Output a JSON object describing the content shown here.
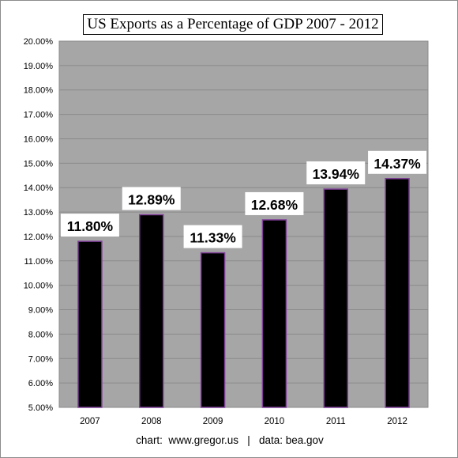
{
  "chart_data": {
    "type": "bar",
    "title": "US Exports as a Percentage of GDP 2007 - 2012",
    "categories": [
      "2007",
      "2008",
      "2009",
      "2010",
      "2011",
      "2012"
    ],
    "values": [
      11.8,
      12.89,
      11.33,
      12.68,
      13.94,
      14.37
    ],
    "data_labels": [
      "11.80%",
      "12.89%",
      "11.33%",
      "12.68%",
      "13.94%",
      "14.37%"
    ],
    "xlabel": "",
    "ylabel": "",
    "ylim": [
      5,
      20
    ],
    "y_ticks": [
      "5.00%",
      "6.00%",
      "7.00%",
      "8.00%",
      "9.00%",
      "10.00%",
      "11.00%",
      "12.00%",
      "13.00%",
      "14.00%",
      "15.00%",
      "16.00%",
      "17.00%",
      "18.00%",
      "19.00%",
      "20.00%"
    ],
    "grid": true,
    "legend": "none",
    "colors": {
      "plot_background": "#a6a6a6",
      "bar_fill": "#000000",
      "bar_outline": "#7f3f98",
      "gridline": "#8a8a8a"
    }
  },
  "footer": {
    "credit_text": "chart:  www.gregor.us   |   data: bea.gov"
  }
}
